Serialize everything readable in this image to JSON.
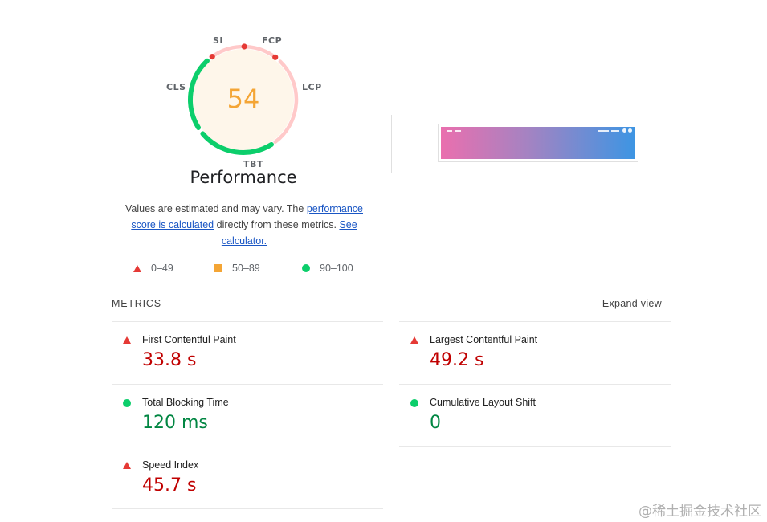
{
  "gauge": {
    "score": "54",
    "score_fraction": 0.54,
    "title": "Performance",
    "labels": {
      "si": "SI",
      "fcp": "FCP",
      "lcp": "LCP",
      "tbt": "TBT",
      "cls": "CLS"
    },
    "colors": {
      "score": "#f4a535",
      "score_bg": "#fef6ea",
      "pass": "#0cce6b",
      "fail_track": "#ffc9c9",
      "fail_dot": "#e53935"
    }
  },
  "description": {
    "text1": "Values are estimated and may vary. The ",
    "link1": "performance score is calculated",
    "text2": " directly from these metrics. ",
    "link2": "See calculator."
  },
  "legend": [
    {
      "icon": "triangle-icon",
      "label": "0–49",
      "color": "#e53935"
    },
    {
      "icon": "square-icon",
      "label": "50–89",
      "color": "#f4a535"
    },
    {
      "icon": "circle-icon",
      "label": "90–100",
      "color": "#0cce6b"
    }
  ],
  "metrics": {
    "heading": "METRICS",
    "expand_label": "Expand view",
    "items": [
      {
        "name": "First Contentful Paint",
        "value": "33.8 s",
        "status": "fail"
      },
      {
        "name": "Largest Contentful Paint",
        "value": "49.2 s",
        "status": "fail"
      },
      {
        "name": "Total Blocking Time",
        "value": "120 ms",
        "status": "pass"
      },
      {
        "name": "Cumulative Layout Shift",
        "value": "0",
        "status": "pass"
      },
      {
        "name": "Speed Index",
        "value": "45.7 s",
        "status": "fail"
      }
    ]
  },
  "watermark": "@稀土掘金技术社区"
}
